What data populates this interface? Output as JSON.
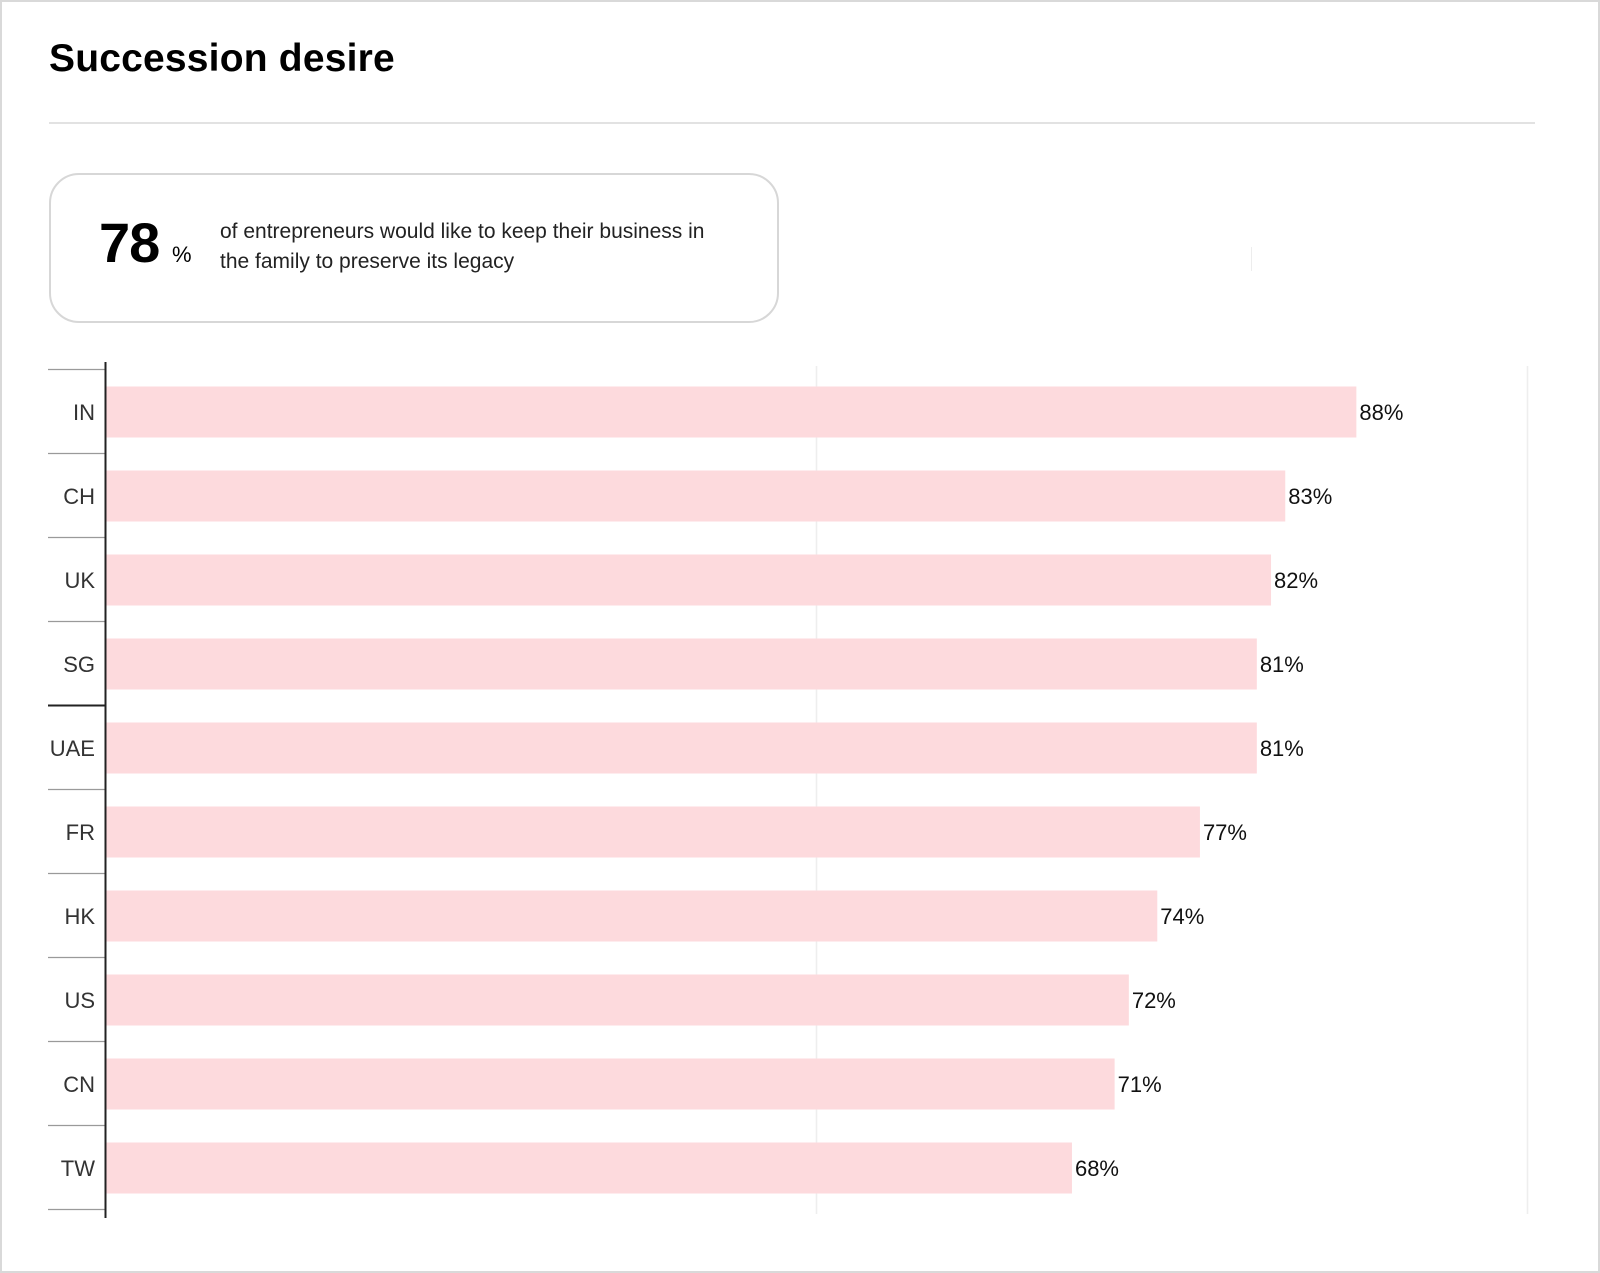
{
  "page": {
    "title": "Succession desire"
  },
  "stat_card": {
    "value": "78",
    "unit": "%",
    "text": "of entrepreneurs would like to keep their business in the family to preserve its legacy"
  },
  "colors": {
    "bar": "#fddadd",
    "axis": "#222222",
    "grid": "#eeeeee",
    "row_divider": "#9a9a9a",
    "row_divider_strong": "#222222"
  },
  "chart_data": {
    "type": "bar",
    "orientation": "horizontal",
    "categories": [
      "IN",
      "CH",
      "UK",
      "SG",
      "UAE",
      "FR",
      "HK",
      "US",
      "CN",
      "TW"
    ],
    "values": [
      88,
      83,
      82,
      81,
      81,
      77,
      74,
      72,
      71,
      68
    ],
    "value_labels": [
      "88%",
      "83%",
      "82%",
      "81%",
      "81%",
      "77%",
      "74%",
      "72%",
      "71%",
      "68%"
    ],
    "xlim": [
      0,
      100
    ],
    "grid": true,
    "legend": "none"
  }
}
